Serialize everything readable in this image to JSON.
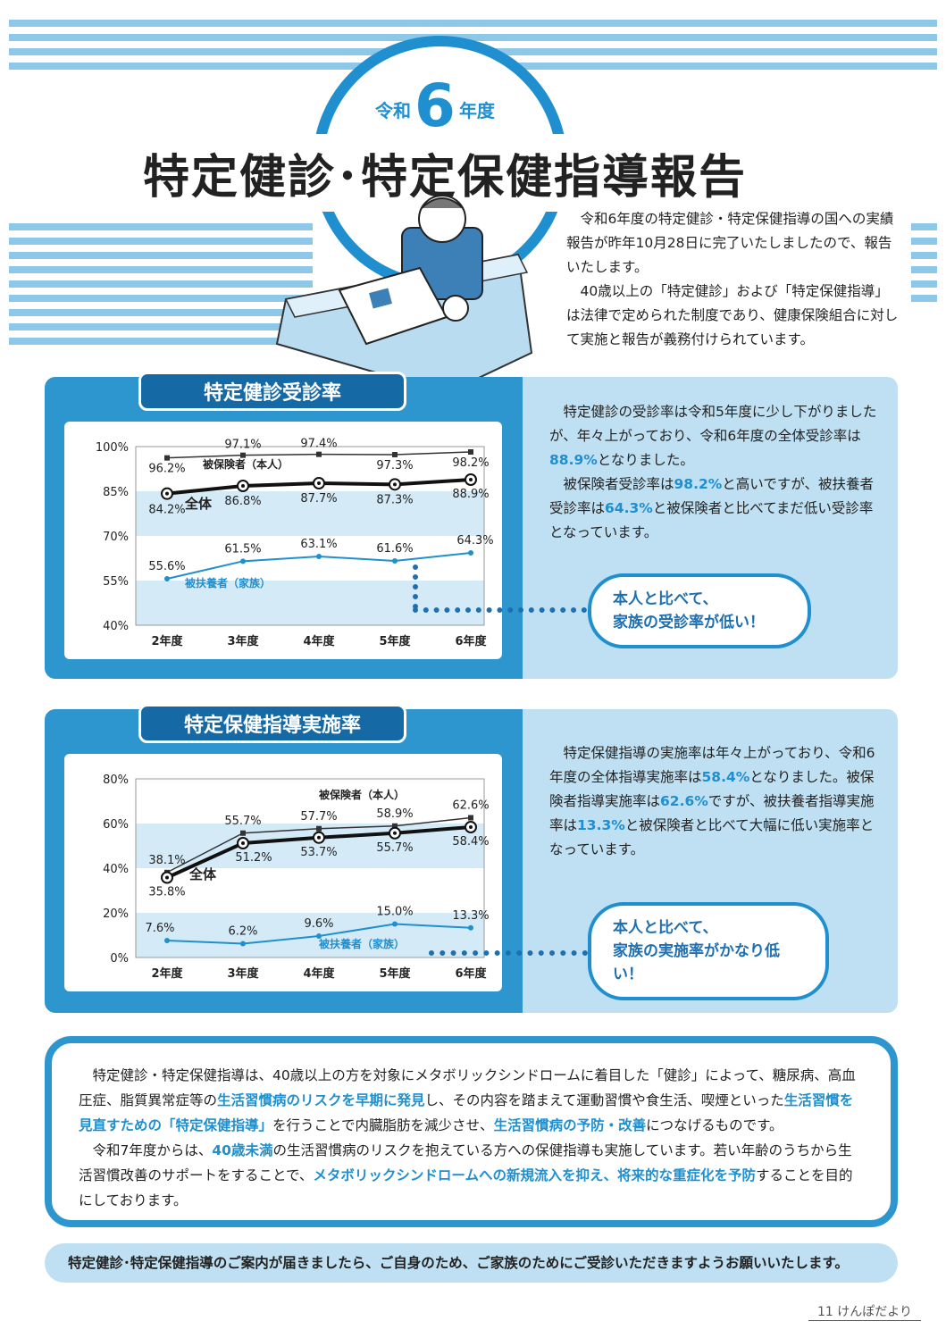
{
  "header": {
    "era_prefix": "令和",
    "era_number": "6",
    "era_suffix": "年度",
    "title": "特定健診･特定保健指導報告"
  },
  "intro": [
    "令和6年度の特定健診・特定保健指導の国への実績報告が昨年10月28日に完了いたしましたので、報告いたします。",
    "40歳以上の「特定健診」および「特定保健指導」は法律で定められた制度であり、健康保険組合に対して実施と報告が義務付けられています。"
  ],
  "section1": {
    "tab": "特定健診受診率",
    "text_p1": [
      "特定健診の受診率は令和5年度に少し下がりましたが、年々上がっており、令和6年度の全体受診率は",
      "88.9%",
      "となりました。"
    ],
    "text_p2": [
      "被保険者受診率は",
      "98.2%",
      "と高いですが、被扶養者受診率は",
      "64.3%",
      "と被保険者と比べてまだ低い受診率となっています。"
    ],
    "bubble_line1": "本人と比べて、",
    "bubble_line2": "家族の受診率が低い！"
  },
  "section2": {
    "tab": "特定保健指導実施率",
    "text_p1": [
      "特定保健指導の実施率は年々上がっており、令和6年度の全体指導実施率は",
      "58.4%",
      "となりました。被保険者指導実施率は",
      "62.6%",
      "ですが、被扶養者指導実施率は",
      "13.3%",
      "と被保険者と比べて大幅に低い実施率となっています。"
    ],
    "bubble_line1": "本人と比べて、",
    "bubble_line2": "家族の実施率がかなり低い！"
  },
  "chart_data": [
    {
      "type": "line",
      "categories": [
        "2年度",
        "3年度",
        "4年度",
        "5年度",
        "6年度"
      ],
      "yticks": [
        "100%",
        "85%",
        "70%",
        "55%",
        "40%"
      ],
      "ylim": [
        40,
        100
      ],
      "series": [
        {
          "name": "被保険者（本人）",
          "values": [
            96.2,
            97.1,
            97.4,
            97.3,
            98.2
          ],
          "labels": [
            "96.2%",
            "97.1%",
            "97.4%",
            "97.3%",
            "98.2%"
          ],
          "color": "#333333"
        },
        {
          "name": "全体",
          "values": [
            84.2,
            86.8,
            87.7,
            87.3,
            88.9
          ],
          "labels": [
            "84.2%",
            "86.8%",
            "87.7%",
            "87.3%",
            "88.9%"
          ],
          "color": "#111111"
        },
        {
          "name": "被扶養者（家族）",
          "values": [
            55.6,
            61.5,
            63.1,
            61.6,
            64.3
          ],
          "labels": [
            "55.6%",
            "61.5%",
            "63.1%",
            "61.6%",
            "64.3%"
          ],
          "color": "#1f8fcf"
        }
      ]
    },
    {
      "type": "line",
      "categories": [
        "2年度",
        "3年度",
        "4年度",
        "5年度",
        "6年度"
      ],
      "yticks": [
        "80%",
        "60%",
        "40%",
        "20%",
        "0%"
      ],
      "ylim": [
        0,
        80
      ],
      "series": [
        {
          "name": "被保険者（本人）",
          "values": [
            38.1,
            55.7,
            57.7,
            58.9,
            62.6
          ],
          "labels": [
            "38.1%",
            "55.7%",
            "57.7%",
            "58.9%",
            "62.6%"
          ],
          "color": "#333333"
        },
        {
          "name": "全体",
          "values": [
            35.8,
            51.2,
            53.7,
            55.7,
            58.4
          ],
          "labels": [
            "35.8%",
            "51.2%",
            "53.7%",
            "55.7%",
            "58.4%"
          ],
          "color": "#111111"
        },
        {
          "name": "被扶養者（家族）",
          "values": [
            7.6,
            6.2,
            9.6,
            15.0,
            13.3
          ],
          "labels": [
            "7.6%",
            "6.2%",
            "9.6%",
            "15.0%",
            "13.3%"
          ],
          "color": "#1f8fcf"
        }
      ]
    }
  ],
  "info": {
    "p1": [
      {
        "t": "特定健診・特定保健指導は、40歳以上の方を対象にメタボリックシンドロームに着目した「健診」によって、糖尿病、高血圧症、脂質異常症等の",
        "h": false
      },
      {
        "t": "生活習慣病のリスクを早期に発見",
        "h": true
      },
      {
        "t": "し、その内容を踏まえて運動習慣や食生活、喫煙といった",
        "h": false
      },
      {
        "t": "生活習慣を見直すための「特定保健指導」",
        "h": true
      },
      {
        "t": "を行うことで内臓脂肪を減少させ、",
        "h": false
      },
      {
        "t": "生活習慣病の予防・改善",
        "h": true
      },
      {
        "t": "につなげるものです。",
        "h": false
      }
    ],
    "p2": [
      {
        "t": "令和7年度からは、",
        "h": false
      },
      {
        "t": "40歳未満",
        "h": true
      },
      {
        "t": "の生活習慣病のリスクを抱えている方への保健指導も実施しています。若い年齢のうちから生活習慣改善のサポートをすることで、",
        "h": false
      },
      {
        "t": "メタボリックシンドロームへの新規流入を抑え、将来的な重症化を予防",
        "h": true
      },
      {
        "t": "することを目的にしております。",
        "h": false
      }
    ]
  },
  "footer": "特定健診･特定保健指導のご案内が届きましたら、ご自身のため、ご家族のためにご受診いただきますようお願いいたします。",
  "page_number": "11 けんぽだより"
}
